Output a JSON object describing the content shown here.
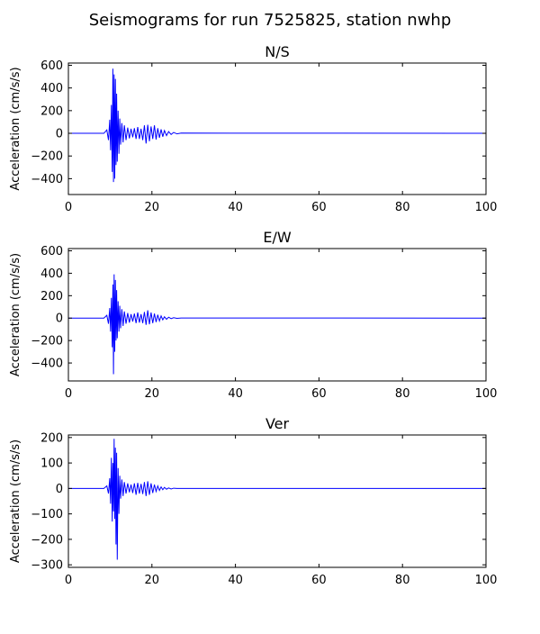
{
  "figure": {
    "title": "Seismograms for run 7525825, station nwhp"
  },
  "chart_data": [
    {
      "type": "line",
      "title": "N/S",
      "xlabel": "",
      "ylabel": "Acceleration (cm/s/s)",
      "xlim": [
        0,
        100
      ],
      "ylim": [
        -540,
        620
      ],
      "xticks": [
        0,
        20,
        40,
        60,
        80,
        100
      ],
      "yticks": [
        -400,
        -200,
        0,
        200,
        400,
        600
      ],
      "grid": false,
      "series": [
        {
          "color": "#0000ff",
          "x": [
            0,
            8.5,
            9.2,
            9.6,
            9.9,
            10.1,
            10.3,
            10.5,
            10.65,
            10.8,
            10.95,
            11.1,
            11.25,
            11.4,
            11.55,
            11.7,
            11.9,
            12.1,
            12.3,
            12.5,
            12.8,
            13.1,
            13.4,
            13.8,
            14.2,
            14.6,
            15.0,
            15.4,
            15.8,
            16.2,
            16.6,
            17.0,
            17.4,
            17.8,
            18.2,
            18.6,
            19.0,
            19.4,
            19.8,
            20.2,
            20.6,
            21.0,
            21.4,
            21.8,
            22.2,
            22.6,
            23.0,
            23.5,
            24.0,
            24.6,
            25.2,
            26.0,
            27.0,
            100
          ],
          "y": [
            0,
            0,
            30,
            -60,
            120,
            -150,
            250,
            -340,
            570,
            -430,
            520,
            -400,
            480,
            -280,
            350,
            -250,
            200,
            -180,
            130,
            -100,
            90,
            -80,
            70,
            -60,
            50,
            -45,
            40,
            -35,
            45,
            -50,
            55,
            -50,
            40,
            -60,
            70,
            -90,
            75,
            -70,
            60,
            -50,
            70,
            -55,
            45,
            -40,
            35,
            -30,
            25,
            -20,
            15,
            -10,
            8,
            -5,
            2,
            0
          ]
        }
      ]
    },
    {
      "type": "line",
      "title": "E/W",
      "xlabel": "",
      "ylabel": "Acceleration (cm/s/s)",
      "xlim": [
        0,
        100
      ],
      "ylim": [
        -560,
        620
      ],
      "xticks": [
        0,
        20,
        40,
        60,
        80,
        100
      ],
      "yticks": [
        -400,
        -200,
        0,
        200,
        400,
        600
      ],
      "grid": false,
      "series": [
        {
          "color": "#0000ff",
          "x": [
            0,
            8.5,
            9.2,
            9.6,
            9.9,
            10.1,
            10.3,
            10.5,
            10.65,
            10.8,
            10.95,
            11.1,
            11.25,
            11.4,
            11.55,
            11.7,
            11.9,
            12.1,
            12.3,
            12.5,
            12.8,
            13.1,
            13.4,
            13.8,
            14.2,
            14.6,
            15.0,
            15.4,
            15.8,
            16.2,
            16.6,
            17.0,
            17.4,
            17.8,
            18.2,
            18.6,
            19.0,
            19.4,
            19.8,
            20.2,
            20.6,
            21.0,
            21.4,
            21.8,
            22.2,
            22.6,
            23.0,
            23.5,
            24.0,
            24.6,
            25.2,
            26.0,
            27.0,
            100
          ],
          "y": [
            0,
            0,
            25,
            -50,
            90,
            -120,
            180,
            -260,
            300,
            -500,
            390,
            -300,
            340,
            -200,
            250,
            -180,
            150,
            -120,
            110,
            -90,
            80,
            -70,
            60,
            -50,
            45,
            -40,
            35,
            -30,
            40,
            -45,
            50,
            -40,
            35,
            -45,
            55,
            -60,
            70,
            -55,
            50,
            -45,
            40,
            -35,
            30,
            -25,
            20,
            -15,
            12,
            -10,
            8,
            -5,
            4,
            -2,
            1,
            0
          ]
        }
      ]
    },
    {
      "type": "line",
      "title": "Ver",
      "xlabel": "",
      "ylabel": "Acceleration (cm/s/s)",
      "xlim": [
        0,
        100
      ],
      "ylim": [
        -310,
        210
      ],
      "xticks": [
        0,
        20,
        40,
        60,
        80,
        100
      ],
      "yticks": [
        -300,
        -200,
        -100,
        0,
        100,
        200
      ],
      "grid": false,
      "series": [
        {
          "color": "#0000ff",
          "x": [
            0,
            8.5,
            9.2,
            9.6,
            9.9,
            10.1,
            10.3,
            10.5,
            10.65,
            10.8,
            10.95,
            11.1,
            11.25,
            11.4,
            11.55,
            11.7,
            11.9,
            12.1,
            12.3,
            12.5,
            12.8,
            13.1,
            13.4,
            13.8,
            14.2,
            14.6,
            15.0,
            15.4,
            15.8,
            16.2,
            16.6,
            17.0,
            17.4,
            17.8,
            18.2,
            18.6,
            19.0,
            19.4,
            19.8,
            20.2,
            20.6,
            21.0,
            21.4,
            21.8,
            22.2,
            22.6,
            23.0,
            23.5,
            24.0,
            24.6,
            25.2,
            26.0,
            27.0,
            100
          ],
          "y": [
            0,
            0,
            10,
            -20,
            40,
            -60,
            120,
            -130,
            100,
            -90,
            195,
            -120,
            160,
            -220,
            140,
            -280,
            80,
            -100,
            50,
            -40,
            35,
            -30,
            25,
            -20,
            20,
            -15,
            15,
            -18,
            20,
            -25,
            22,
            -20,
            18,
            -22,
            25,
            -30,
            28,
            -25,
            20,
            -18,
            15,
            -12,
            10,
            -8,
            6,
            -5,
            4,
            -3,
            2,
            -2,
            1,
            0,
            0,
            0
          ]
        }
      ]
    }
  ]
}
